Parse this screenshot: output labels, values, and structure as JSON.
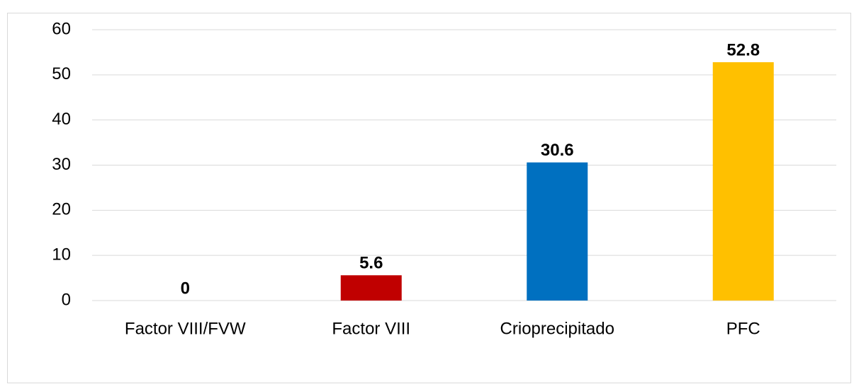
{
  "chart_data": {
    "type": "bar",
    "categories": [
      "Factor VIII/FVW",
      "Factor VIII",
      "Crioprecipitado",
      "PFC"
    ],
    "values": [
      0,
      5.6,
      30.6,
      52.8
    ],
    "colors": [
      "#a5a5a5",
      "#c00000",
      "#0070c0",
      "#ffc000"
    ],
    "ylim": [
      0,
      60
    ],
    "yticks": [
      0,
      10,
      20,
      30,
      40,
      50,
      60
    ],
    "grid": true
  }
}
